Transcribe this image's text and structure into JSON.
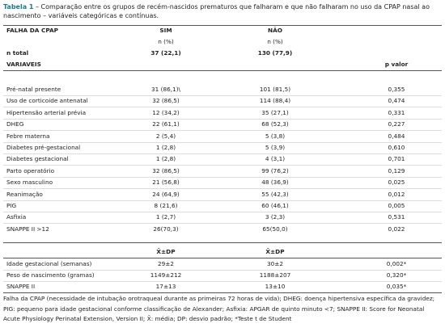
{
  "caption": {
    "label": "Tabela 1",
    "text": " – Comparação entre os grupos de recém-nascidos prematuros que falharam e que não falharam no uso da CPAP nasal ao nascimento – variáveis categóricas e contínuas."
  },
  "header": {
    "label": "FALHA DA CPAP",
    "sim": "SIM",
    "nao": "NÃO",
    "sim_unit": "n (%)",
    "nao_unit": "n (%)"
  },
  "total": [
    "n total",
    "37 (22,1)",
    "130 (77,9)"
  ],
  "variables_header": {
    "label": "VARIAVEIS",
    "p": "p valor"
  },
  "categorical": [
    [
      "Pré-natal presente",
      "31 (86,1)\\",
      "101 (81,5)",
      "0,355"
    ],
    [
      "Uso de corticoide antenatal",
      "32 (86,5)",
      "114 (88,4)",
      "0,474"
    ],
    [
      "Hipertensão arterial prévia",
      "12 (34,2)",
      "35 (27,1)",
      "0,331"
    ],
    [
      "DHEG",
      "22 (61,1)",
      "68 (52,3)",
      "0,227"
    ],
    [
      "Febre materna",
      "2 (5,4)",
      "5 (3,8)",
      "0,484"
    ],
    [
      "Diabetes pré-gestacional",
      "1 (2,8)",
      "5 (3,9)",
      "0,610"
    ],
    [
      "Diabetes gestacional",
      "1 (2,8)",
      "4 (3,1)",
      "0,701"
    ],
    [
      "Parto operatório",
      "32 (86,5)",
      "99 (76,2)",
      "0,129"
    ],
    [
      "Sexo masculino",
      "21 (56,8)",
      "48 (36,9)",
      "0,025"
    ],
    [
      "Reanimação",
      "24 (64,9)",
      "55 (42,3)",
      "0,012"
    ],
    [
      "PIG",
      "8 (21,6)",
      "60 (46,1)",
      "0,005"
    ],
    [
      "Asfixia",
      "1 (2,7)",
      "3 (2,3)",
      "0,531"
    ],
    [
      "SNAPPE II >12",
      "26(70,3)",
      "65(50,0)",
      "0,022"
    ]
  ],
  "continuous_header": {
    "sim": "X̄±DP",
    "nao": "X̄±DP"
  },
  "continuous": [
    [
      "Idade gestacional (semanas)",
      "29±2",
      "30±2",
      "0,002*"
    ],
    [
      "Peso de nascimento (gramas)",
      "1149±212",
      "1188±207",
      "0,320*"
    ],
    [
      "SNAPPE II",
      "17±13",
      "13±10",
      "0,035*"
    ]
  ],
  "footnote": "Falha da CPAP (necessidade de intubação orotraqueal durante as primeiras 72 horas de vida); DHEG: doença hipertensiva específica da gravidez; PIG: pequeno para idade gestacional conforme classificação de Alexander; Asfixia: APGAR de quinto minuto <7; SNAPPE II: Score for Neonatal Acute Physiology Perinatal Extension, Version II; X̄: média; DP: desvio padrão; *Teste t de Student"
}
